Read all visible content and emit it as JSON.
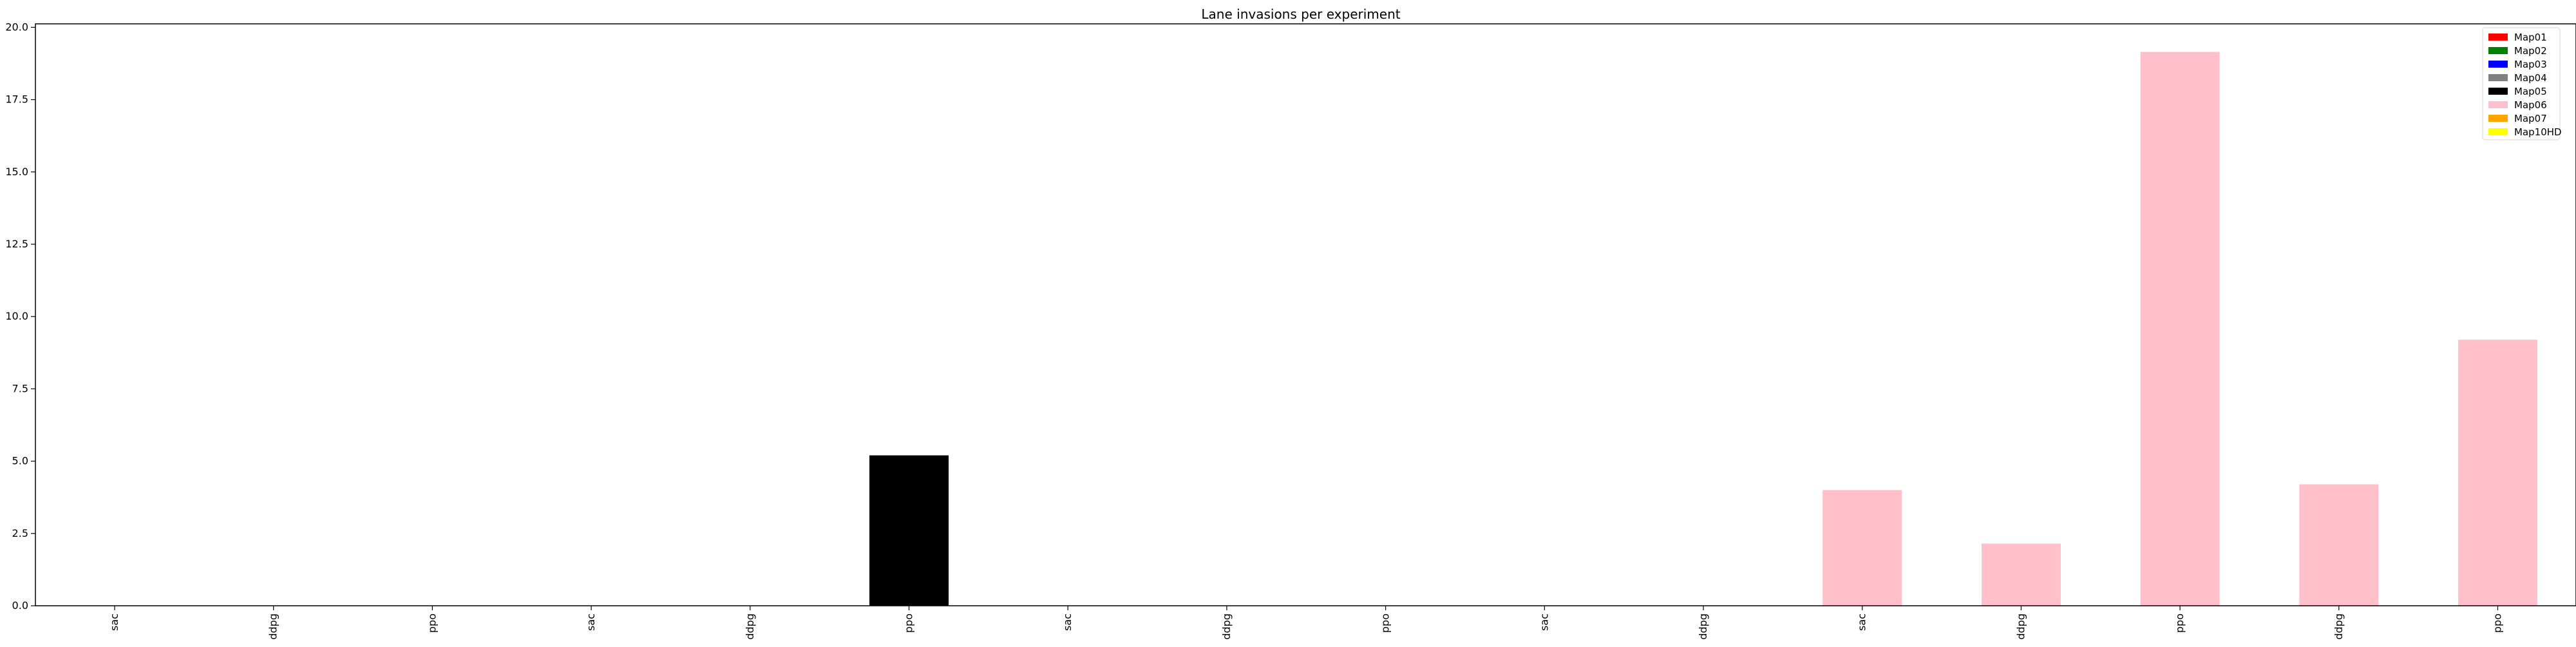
{
  "chart_data": {
    "type": "bar",
    "title": "Lane invasions per experiment",
    "xlabel": "",
    "ylabel": "",
    "ylim": [
      0,
      20.12
    ],
    "yticks": [
      "0.0",
      "2.5",
      "5.0",
      "7.5",
      "10.0",
      "12.5",
      "15.0",
      "17.5",
      "20.0"
    ],
    "categories": [
      "sac",
      "ddpg",
      "ppo",
      "sac",
      "ddpg",
      "ppo",
      "sac",
      "ddpg",
      "ppo",
      "sac",
      "ddpg",
      "sac",
      "ddpg",
      "ppo",
      "ddpg",
      "ppo"
    ],
    "bar_series_index": [
      0,
      0,
      0,
      3,
      3,
      4,
      5,
      5,
      5,
      5,
      5,
      5,
      5,
      5,
      5,
      5
    ],
    "values": [
      0,
      0,
      0,
      0,
      0,
      5.2,
      0,
      0,
      0,
      0,
      0,
      4.0,
      2.15,
      19.15,
      4.2,
      9.2
    ],
    "legend_position": "upper right",
    "grid": false,
    "series": [
      {
        "name": "Map01",
        "color": "#ff0000"
      },
      {
        "name": "Map02",
        "color": "#008000"
      },
      {
        "name": "Map03",
        "color": "#0000ff"
      },
      {
        "name": "Map04",
        "color": "#808080"
      },
      {
        "name": "Map05",
        "color": "#000000"
      },
      {
        "name": "Map06",
        "color": "#ffc0cb"
      },
      {
        "name": "Map07",
        "color": "#ffa500"
      },
      {
        "name": "Map10HD",
        "color": "#ffff00"
      }
    ]
  }
}
